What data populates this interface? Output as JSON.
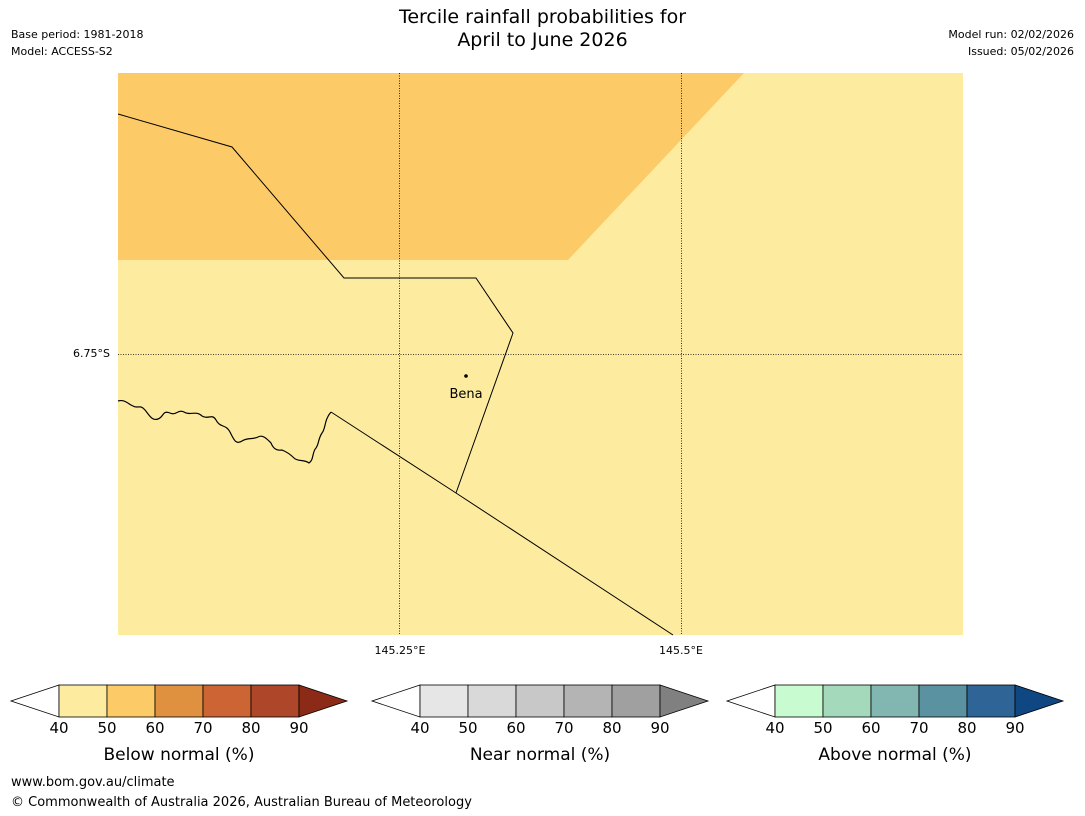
{
  "title_line1": "Tercile rainfall probabilities for",
  "title_line2": "April to June 2026",
  "base_period": "Base period: 1981-2018",
  "model": "Model: ACCESS-S2",
  "model_run": "Model run: 02/02/2026",
  "issued": "Issued: 05/02/2026",
  "map": {
    "lat_label": "6.75°S",
    "lon_labels": [
      "145.25°E",
      "145.5°E"
    ],
    "place": "Bena",
    "regions": [
      {
        "category": "Below normal",
        "range": "50-60"
      },
      {
        "category": "Below normal",
        "range": "40-50"
      }
    ]
  },
  "legends": [
    {
      "title": "Below normal (%)",
      "ticks": [
        "40",
        "50",
        "60",
        "70",
        "80",
        "90"
      ],
      "colors": [
        "#fdeca0",
        "#fdca68",
        "#e0913f",
        "#cc6533",
        "#ae4629"
      ],
      "end_color": "#8c2a18"
    },
    {
      "title": "Near normal (%)",
      "ticks": [
        "40",
        "50",
        "60",
        "70",
        "80",
        "90"
      ],
      "colors": [
        "#e6e6e6",
        "#d9d9d9",
        "#c8c8c8",
        "#b4b4b4",
        "#a0a0a0"
      ],
      "end_color": "#808080"
    },
    {
      "title": "Above normal (%)",
      "ticks": [
        "40",
        "50",
        "60",
        "70",
        "80",
        "90"
      ],
      "colors": [
        "#c8fcd0",
        "#a4d9bc",
        "#82b6b0",
        "#5a92a2",
        "#2e6496"
      ],
      "end_color": "#0f4782"
    }
  ],
  "footer_url": "www.bom.gov.au/climate",
  "footer_copyright": "© Commonwealth of Australia 2026, Australian Bureau of Meteorology"
}
